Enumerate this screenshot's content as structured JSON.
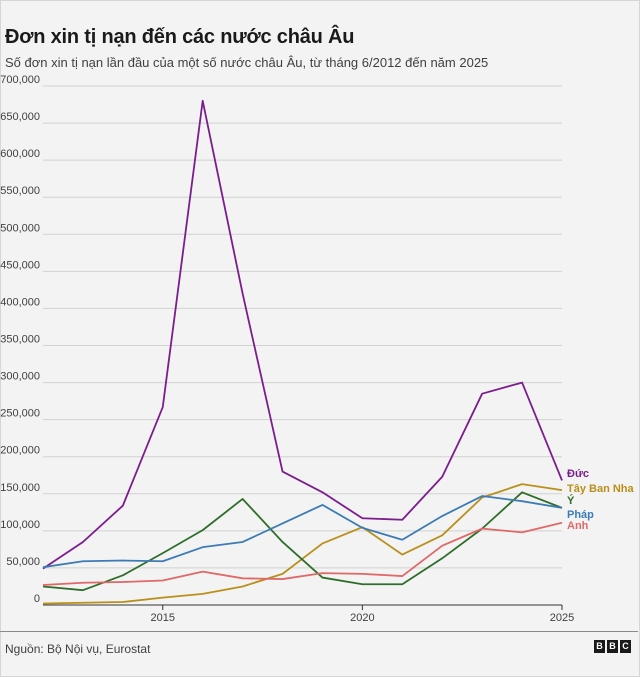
{
  "header": {
    "title": "Đơn xin tị nạn đến các nước châu Âu",
    "subtitle": "Số đơn xin tị nạn lần đầu của một số nước châu Âu, từ tháng 6/2012 đến năm 2025"
  },
  "footer": {
    "source": "Nguồn: Bộ Nội vụ, Eurostat",
    "logo_letters": [
      "B",
      "B",
      "C"
    ]
  },
  "chart_data": {
    "type": "line",
    "title": "Đơn xin tị nạn đến các nước châu Âu",
    "subtitle": "Số đơn xin tị nạn lần đầu của một số nước châu Âu, từ tháng 6/2012 đến năm 2025",
    "xlabel": "",
    "ylabel": "",
    "x": [
      2012,
      2013,
      2014,
      2015,
      2016,
      2017,
      2018,
      2019,
      2020,
      2021,
      2022,
      2023,
      2024,
      2025
    ],
    "xlim": [
      2012,
      2025
    ],
    "ylim": [
      0,
      700000
    ],
    "x_ticks": [
      "2015",
      "2020",
      "2025"
    ],
    "y_ticks": [
      "0",
      "50,000",
      "100,000",
      "150,000",
      "200,000",
      "250,000",
      "300,000",
      "350,000",
      "400,000",
      "450,000",
      "500,000",
      "550,000",
      "600,000",
      "650,000",
      "700,000"
    ],
    "grid": true,
    "legend": "direct labels at right end of lines",
    "series": [
      {
        "name": "Đức",
        "color": "#7b1d8c",
        "values": [
          49000,
          85000,
          134000,
          267000,
          680000,
          420000,
          180000,
          152000,
          117000,
          115000,
          173000,
          285000,
          300000,
          168000
        ]
      },
      {
        "name": "Tây Ban Nha",
        "color": "#b8901a",
        "values": [
          2000,
          3000,
          4000,
          10000,
          15000,
          25000,
          42000,
          83000,
          105000,
          68000,
          94000,
          145000,
          163000,
          155000
        ]
      },
      {
        "name": "Ý",
        "color": "#2e6e2a",
        "values": [
          25000,
          20000,
          40000,
          70000,
          101000,
          143000,
          85000,
          37000,
          28000,
          28000,
          63000,
          103000,
          152000,
          131000
        ]
      },
      {
        "name": "Pháp",
        "color": "#3c7bb4",
        "values": [
          51000,
          59000,
          60000,
          59000,
          78000,
          85000,
          110000,
          135000,
          104000,
          88000,
          120000,
          147000,
          140000,
          131000
        ]
      },
      {
        "name": "Anh",
        "color": "#e06868",
        "values": [
          27000,
          30000,
          31000,
          33000,
          45000,
          36000,
          35000,
          43000,
          42000,
          39000,
          80000,
          103000,
          98000,
          111000
        ]
      }
    ]
  }
}
